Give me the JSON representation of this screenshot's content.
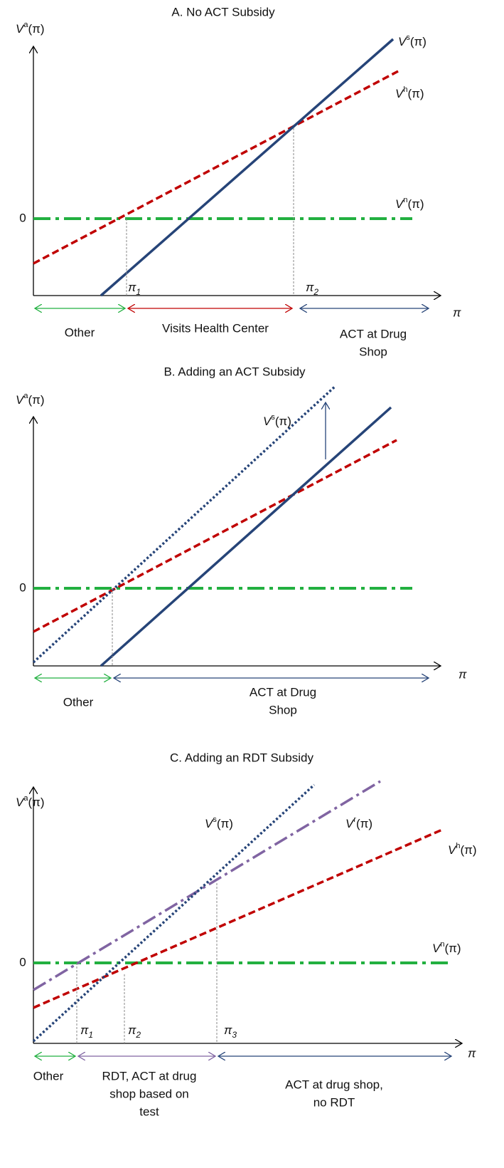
{
  "panels": [
    {
      "title": "A. No ACT Subsidy",
      "y_axis_label": {
        "main": "V",
        "sup": "a",
        "tail": "(π)"
      },
      "x_axis_label": "π",
      "zero_label": "0",
      "curve_labels": [
        {
          "main": "V",
          "sup": "s",
          "tail": "(π)"
        },
        {
          "main": "V",
          "sup": "h",
          "tail": "(π)"
        },
        {
          "main": "V",
          "sup": "n",
          "tail": "(π)"
        }
      ],
      "threshold_labels": [
        {
          "main": "π",
          "sub": "1"
        },
        {
          "main": "π",
          "sub": "2"
        }
      ],
      "regions": [
        {
          "lines": [
            "Other"
          ]
        },
        {
          "lines": [
            "Visits Health Center"
          ]
        },
        {
          "lines": [
            "ACT at Drug",
            "Shop"
          ]
        }
      ]
    },
    {
      "title": "B. Adding an ACT Subsidy",
      "y_axis_label": {
        "main": "V",
        "sup": "a",
        "tail": "(π)"
      },
      "x_axis_label": "π",
      "zero_label": "0",
      "curve_labels": [
        {
          "main": "V",
          "sup": "s",
          "tail": "(π)"
        }
      ],
      "threshold_labels": [],
      "regions": [
        {
          "lines": [
            "Other"
          ]
        },
        {
          "lines": [
            "ACT  at Drug",
            "Shop"
          ]
        }
      ]
    },
    {
      "title": "C. Adding an RDT Subsidy",
      "y_axis_label": {
        "main": "V",
        "sup": "a",
        "tail": "(π)"
      },
      "x_axis_label": "π",
      "zero_label": "0",
      "curve_labels": [
        {
          "main": "V",
          "sup": "s",
          "tail": "(π)"
        },
        {
          "main": "V",
          "sup": "r",
          "tail": "(π)"
        },
        {
          "main": "V",
          "sup": "h",
          "tail": "(π)"
        },
        {
          "main": "V",
          "sup": "n",
          "tail": "(π)"
        }
      ],
      "threshold_labels": [
        {
          "main": "π",
          "sub": "1"
        },
        {
          "main": "π",
          "sub": "2"
        },
        {
          "main": "π",
          "sub": "3"
        }
      ],
      "regions": [
        {
          "lines": [
            "Other"
          ]
        },
        {
          "lines": [
            "RDT, ACT at drug",
            "shop based on",
            "test"
          ]
        },
        {
          "lines": [
            "ACT at drug shop,",
            "no RDT"
          ]
        }
      ]
    }
  ]
}
